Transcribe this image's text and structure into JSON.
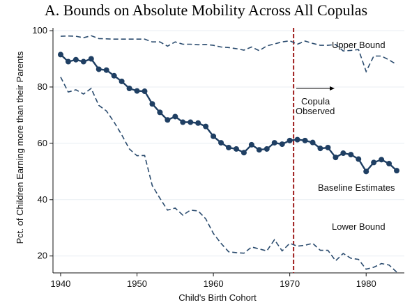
{
  "chart_data": {
    "type": "line",
    "title": "A. Bounds on Absolute Mobility Across All Copulas",
    "xlabel": "Child's Birth Cohort",
    "ylabel": "Pct. of Children Earning more than their Parents",
    "xlim": [
      1939,
      1985
    ],
    "ylim": [
      14,
      101
    ],
    "xticks": [
      1940,
      1950,
      1960,
      1970,
      1980
    ],
    "yticks": [
      20,
      40,
      60,
      80,
      100
    ],
    "grid": true,
    "x": [
      1940,
      1941,
      1942,
      1943,
      1944,
      1945,
      1946,
      1947,
      1948,
      1949,
      1950,
      1951,
      1952,
      1953,
      1954,
      1955,
      1956,
      1957,
      1958,
      1959,
      1960,
      1961,
      1962,
      1963,
      1964,
      1965,
      1966,
      1967,
      1968,
      1969,
      1970,
      1971,
      1972,
      1973,
      1974,
      1975,
      1976,
      1977,
      1978,
      1979,
      1980,
      1981,
      1982,
      1983,
      1984
    ],
    "series": [
      {
        "name": "Upper Bound",
        "style": "dashed",
        "color": "#2a4b6e",
        "values": [
          98,
          98.1,
          98,
          97.5,
          98.2,
          97.2,
          97.1,
          97,
          97,
          97,
          97,
          97,
          96,
          96,
          94.5,
          96,
          95.2,
          95.2,
          95,
          95.1,
          94.8,
          94.2,
          94,
          93.6,
          93.1,
          94.2,
          92.9,
          94.6,
          95.3,
          96,
          96.4,
          95.2,
          96.3,
          95.5,
          94.8,
          94.8,
          95.1,
          92.8,
          93,
          93.3,
          85.5,
          91,
          91,
          89.6,
          88
        ]
      },
      {
        "name": "Baseline Estimates",
        "style": "solid-dots",
        "color": "#1f3f63",
        "values": [
          91.5,
          89,
          89.7,
          89,
          90,
          86.3,
          86,
          84,
          82,
          79.5,
          78.6,
          78.5,
          74,
          71,
          68.3,
          69.5,
          67.5,
          67.5,
          67.2,
          66,
          62.5,
          60.2,
          58.5,
          58,
          56.7,
          59.5,
          57.7,
          58,
          60.2,
          59.7,
          61,
          61.3,
          61,
          60.3,
          58.2,
          58.5,
          55,
          56.5,
          56,
          54.4,
          50,
          53.2,
          54.2,
          52.8,
          50.3
        ]
      },
      {
        "name": "Lower Bound",
        "style": "dashed",
        "color": "#2a4b6e",
        "values": [
          83.5,
          78.2,
          79,
          77.5,
          79.5,
          73.5,
          71.5,
          67.5,
          63,
          58,
          55.6,
          55.7,
          45,
          40.5,
          36.3,
          37,
          34.5,
          36.3,
          36,
          33.2,
          28,
          24.5,
          21.5,
          21.2,
          21,
          23.2,
          22.5,
          21.8,
          25.8,
          21.8,
          24.5,
          23.5,
          23.8,
          24.5,
          22,
          22,
          18.3,
          20.9,
          19.2,
          18.8,
          15.3,
          16,
          17.3,
          16.8,
          14.3
        ]
      }
    ],
    "vline": {
      "x": 1970.5,
      "color": "#9e1b1b",
      "style": "dashed"
    },
    "annotations": {
      "upper": "Upper Bound",
      "baseline": "Baseline Estimates",
      "lower": "Lower Bound",
      "copula_line1": "Copula",
      "copula_line2": "Observed"
    }
  }
}
